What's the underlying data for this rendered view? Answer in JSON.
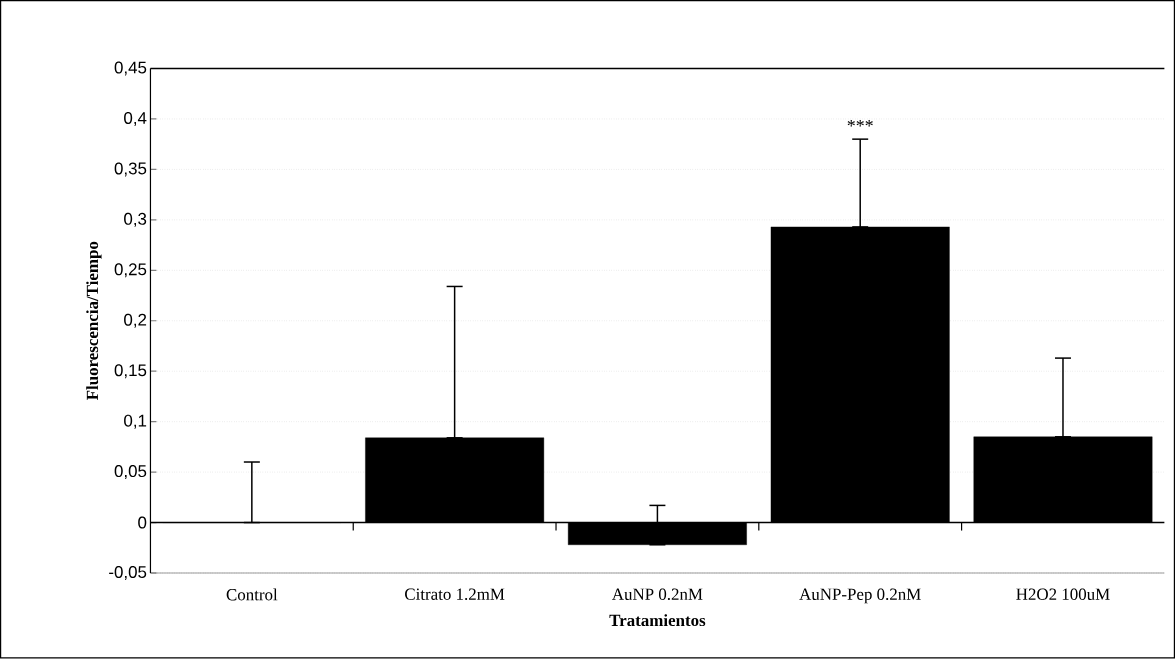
{
  "chart_data": {
    "type": "bar",
    "xlabel": "Tratamientos",
    "ylabel": "Fluorescencia/Tiempo",
    "categories": [
      "Control",
      "Citrato 1.2mM",
      "AuNP 0.2nM",
      "AuNP-Pep 0.2nM",
      "H2O2 100uM"
    ],
    "values": [
      0,
      0.084,
      -0.022,
      0.293,
      0.085
    ],
    "errors": [
      [
        0,
        0.06
      ],
      [
        0.084,
        0.234
      ],
      [
        -0.022,
        0.017
      ],
      [
        0.293,
        0.38
      ],
      [
        0.085,
        0.163
      ]
    ],
    "color": "#000000",
    "ylim": [
      -0.05,
      0.45
    ],
    "yticks": [
      {
        "value": -0.05,
        "label": "-0,05"
      },
      {
        "value": 0,
        "label": "0"
      },
      {
        "value": 0.05,
        "label": "0,05"
      },
      {
        "value": 0.1,
        "label": "0,1"
      },
      {
        "value": 0.15,
        "label": "0,15"
      },
      {
        "value": 0.2,
        "label": "0,2"
      },
      {
        "value": 0.25,
        "label": "0,25"
      },
      {
        "value": 0.3,
        "label": "0,3"
      },
      {
        "value": 0.35,
        "label": "0,35"
      },
      {
        "value": 0.4,
        "label": "0,4"
      },
      {
        "value": 0.45,
        "label": "0,45"
      }
    ],
    "grid": "y",
    "annotations": [
      "***"
    ]
  }
}
